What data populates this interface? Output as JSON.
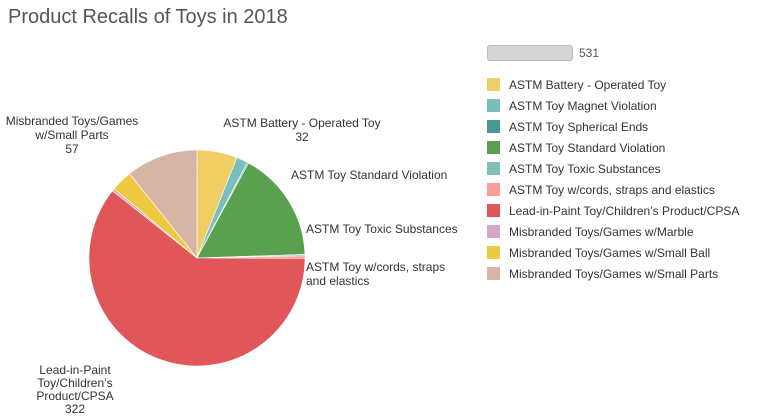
{
  "chart_data": {
    "type": "pie",
    "title": "Product Recalls of Toys in 2018",
    "total": 531,
    "slices": [
      {
        "name": "ASTM Battery - Operated Toy",
        "value": 32,
        "color": "#f1ce63"
      },
      {
        "name": "ASTM Toy Magnet Violation",
        "value": 9,
        "color": "#79bfbb"
      },
      {
        "name": "ASTM Toy Spherical Ends",
        "value": 1,
        "color": "#499894"
      },
      {
        "name": "ASTM Toy Standard Violation",
        "value": 88,
        "color": "#59a14f"
      },
      {
        "name": "ASTM Toy Toxic Substances",
        "value": 1,
        "color": "#86bcb6"
      },
      {
        "name": "ASTM Toy w/cords, straps and elastics",
        "value": 2,
        "color": "#ff9d9a"
      },
      {
        "name": "Lead-in-Paint Toy/Children’s Product/CPSA",
        "value": 322,
        "color": "#e15759"
      },
      {
        "name": "Misbranded Toys/Games w/Marble",
        "value": 2,
        "color": "#d4a6c8"
      },
      {
        "name": "Misbranded Toys/Games w/Small Ball",
        "value": 17,
        "color": "#ecc93f"
      },
      {
        "name": "Misbranded Toys/Games w/Small Parts",
        "value": 57,
        "color": "#d7b5a6"
      }
    ],
    "legend_placement": "right"
  }
}
